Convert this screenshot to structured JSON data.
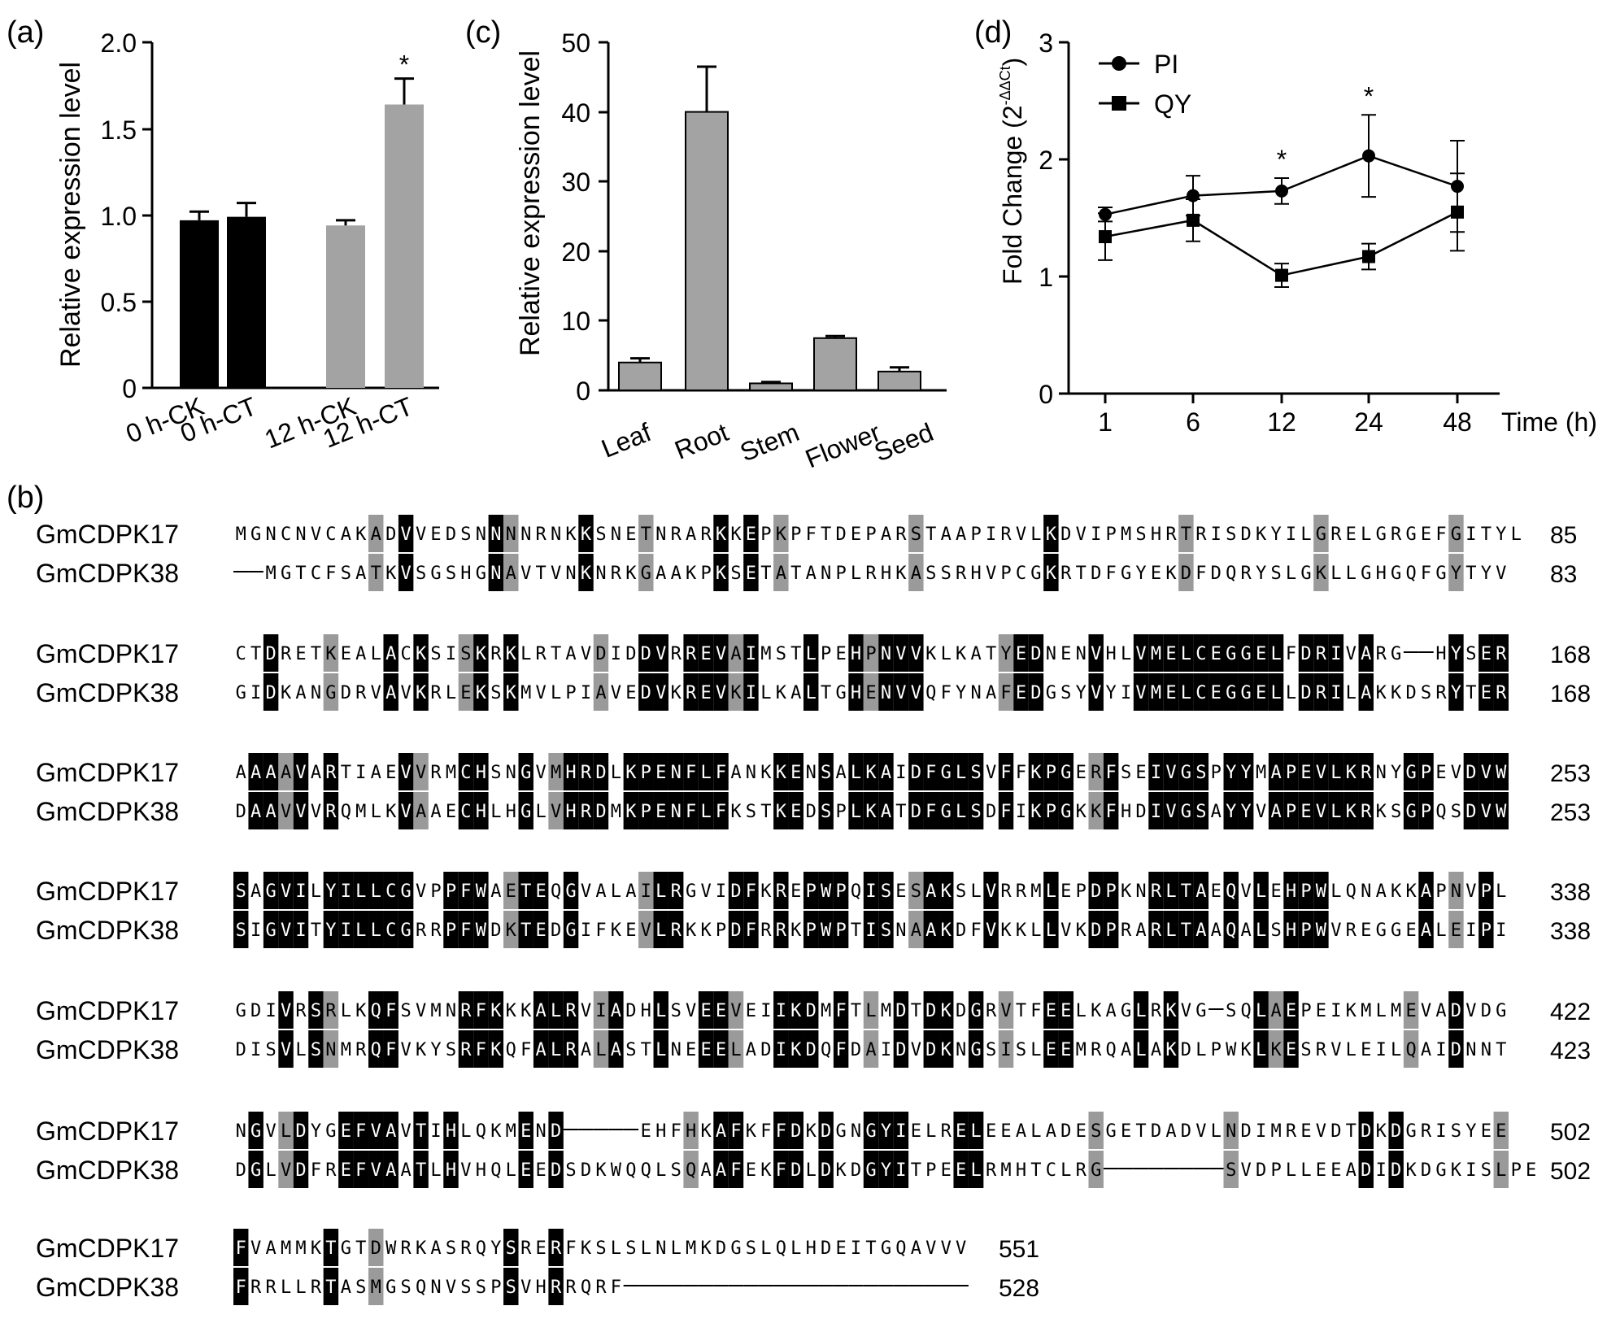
{
  "chart_data": [
    {
      "panel": "(a)",
      "type": "bar",
      "categories": [
        "0 h-CK",
        "0 h-CT",
        "12 h-CK",
        "12 h-CT"
      ],
      "values": [
        0.97,
        0.99,
        0.94,
        1.64
      ],
      "errors": [
        0.05,
        0.08,
        0.03,
        0.15
      ],
      "colors": [
        "#000000",
        "#000000",
        "#a3a3a3",
        "#a3a3a3"
      ],
      "significance": [
        "",
        "",
        "",
        "*"
      ],
      "ylabel": "Relative expression level",
      "ylim": [
        0,
        2.0
      ],
      "yticks": [
        "0",
        "0.5",
        "1.0",
        "1.5",
        "2.0"
      ]
    },
    {
      "panel": "(c)",
      "type": "bar",
      "categories": [
        "Leaf",
        "Root",
        "Stem",
        "Flower",
        "Seed"
      ],
      "values": [
        4.0,
        40.0,
        1.0,
        7.5,
        2.7
      ],
      "errors": [
        0.6,
        6.5,
        0.2,
        0.3,
        0.6
      ],
      "colors": [
        "#a3a3a3",
        "#a3a3a3",
        "#a3a3a3",
        "#a3a3a3",
        "#a3a3a3"
      ],
      "ylabel": "Relative expression level",
      "ylim": [
        0,
        50
      ],
      "yticks": [
        "0",
        "10",
        "20",
        "30",
        "40",
        "50"
      ]
    },
    {
      "panel": "(d)",
      "type": "line",
      "categories": [
        "1",
        "6",
        "12",
        "24",
        "48"
      ],
      "series": [
        {
          "name": "PI",
          "marker": "circle",
          "values": [
            1.53,
            1.69,
            1.73,
            2.03,
            1.77
          ],
          "errors": [
            0.06,
            0.17,
            0.11,
            0.35,
            0.39
          ]
        },
        {
          "name": "QY",
          "marker": "square",
          "values": [
            1.34,
            1.48,
            1.01,
            1.17,
            1.55
          ],
          "errors": [
            0.2,
            0.18,
            0.1,
            0.11,
            0.33
          ]
        }
      ],
      "significance": [
        "",
        "",
        "*",
        "*",
        ""
      ],
      "ylabel": "Fold Change (2",
      "ylabel_sup": "-ΔΔCt",
      "ylabel_close": ")",
      "xlabel": "Time (h)",
      "ylim": [
        0,
        3
      ],
      "yticks": [
        "0",
        "1",
        "2",
        "3"
      ]
    }
  ],
  "alignment": {
    "panel": "(b)",
    "blocks": [
      {
        "rows": [
          {
            "name": "GmCDPK17",
            "seq": "MGNCNVCAKADVVEDSNNNNRNKKSNETNRARKKEPKPFTDEPARSTAAPIRVLKDVIPMSHRTRISDKYILGRELGRGEFGITYL",
            "end": "85"
          },
          {
            "name": "GmCDPK38",
            "seq": "--MGTCFSATKVSGSHGNAVTVNKNRKGAAKPKSETATANPLRHKASSRHVPCGKRTDFGYEKDFDQRYSLGKLLGHGQFGYTYV",
            "end": "83"
          }
        ]
      },
      {
        "rows": [
          {
            "name": "GmCDPK17",
            "seq": "CTDRETKEALACKSISKRKLRTAVDIDDVRREVAIMSTLPEHPNVVKLKATYEDNENVHLVMELCEGGELFDRIVARG--HYSER",
            "end": "168"
          },
          {
            "name": "GmCDPK38",
            "seq": "GIDKANGDRVAVKRLEKSKMVLPIAVEDVKREVKILKALTGHENVVQFYNAFEDGSYVYIVMELCEGGELLDRILAKKDSRYTER",
            "end": "168"
          }
        ]
      },
      {
        "rows": [
          {
            "name": "GmCDPK17",
            "seq": "AAAAVARTIAEVVRMCHSNGVMHRDLKPENFLFANKKENSALKAIDFGLSVFFKPGERFSEIVGSPYYMAPEVLKRNYGPEVDVW",
            "end": "253"
          },
          {
            "name": "GmCDPK38",
            "seq": "DAAVVVRQMLKVAAECHLHGLVHRDMKPENFLFKSTKEDSPLKATDFGLSDFIKPGKKFHDIVGSAYYVAPEVLKRKSGPQSDVW",
            "end": "253"
          }
        ]
      },
      {
        "rows": [
          {
            "name": "GmCDPK17",
            "seq": "SAGVILYILLCGVPPFWAETEQGVALAILRGVIDFKREPWPQISESAKSLVRRMLEPDPKNRLTAEQVLEHPWLQNAKKAPNVPL",
            "end": "338"
          },
          {
            "name": "GmCDPK38",
            "seq": "SIGVITYILLCGRRPFWDKTEDGIFKEVLRKKPDFRRKPWPTISNAAKDFVKKLLVKDPRARLTAAQALSHPWVREGGEALEIPI",
            "end": "338"
          }
        ]
      },
      {
        "rows": [
          {
            "name": "GmCDPK17",
            "seq": "GDIVRSRLKQFSVMNRFKKKALRVIADHLSVEEVEIIKDMFTLMDTDKDGRVTFEELKAGLRKVG-SQLAEPEIKMLMEVADVDG",
            "end": "422"
          },
          {
            "name": "GmCDPK38",
            "seq": "DISVLSNMRQFVKYSRFKQFALRALASTLNEEELADIKDQFDAIDVDKNGSISLEEMRQALAKDLPWKLKESRVLEILQAIDNNT",
            "end": "423"
          }
        ]
      },
      {
        "rows": [
          {
            "name": "GmCDPK17",
            "seq": "NGVLDYGEFVAVTIHLQKMEND-----EHFHKAFKFFDKDGNGYIELRELEEALADESGETDADVLNDIMREVDTDKDGRISYEE",
            "end": "502"
          },
          {
            "name": "GmCDPK38",
            "seq": "DGLVDFREFVAATLHVHQLEEDSDKWQQLSQAAFEKFDLDKDGYITPEELRMHTCLRG--------SVDPLLEEADIDKDGKISLPE",
            "end": "502"
          }
        ]
      },
      {
        "rows": [
          {
            "name": "GmCDPK17",
            "seq": "FVAMMKTGTDWRKASRQYSRERFKSLSLNLMKDGSLQLHDEITGQAVVV",
            "end": "551"
          },
          {
            "name": "GmCDPK38",
            "seq": "FRRLLRTASMGSQNVSSPSVHRRQRF-----------------------",
            "end": "528"
          }
        ]
      }
    ]
  }
}
